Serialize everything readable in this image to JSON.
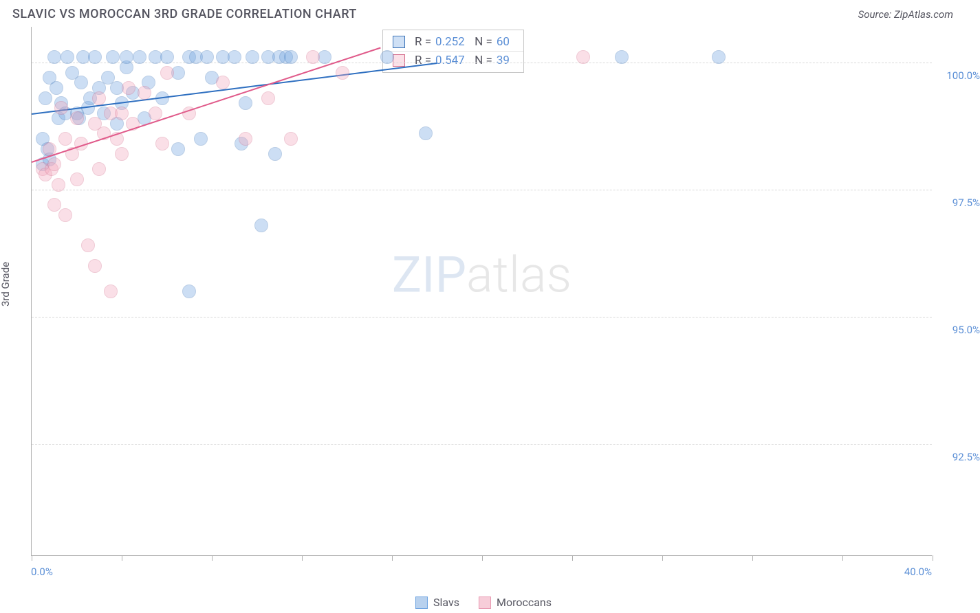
{
  "title": "SLAVIC VS MOROCCAN 3RD GRADE CORRELATION CHART",
  "source": "Source: ZipAtlas.com",
  "ylabel": "3rd Grade",
  "watermark_a": "ZIP",
  "watermark_b": "atlas",
  "chart": {
    "type": "scatter",
    "background_color": "#ffffff",
    "grid_color": "#d8d8d8",
    "axis_color": "#b0b0b0",
    "label_color": "#5b8fd6",
    "text_color": "#555560",
    "xlim": [
      0,
      40
    ],
    "ylim": [
      90.3,
      100.7
    ],
    "xtick_step": 4,
    "yticks": [
      92.5,
      95.0,
      97.5,
      100.0
    ],
    "ytick_labels": [
      "92.5%",
      "95.0%",
      "97.5%",
      "100.0%"
    ],
    "x_end_labels": [
      "0.0%",
      "40.0%"
    ],
    "marker_radius": 10,
    "marker_opacity": 0.35,
    "series": [
      {
        "name": "Slavs",
        "fill": "#6fa3e0",
        "stroke": "#3d74b8",
        "trend_color": "#2e6fc0",
        "trend": {
          "x1": 0,
          "y1": 99.0,
          "x2": 18,
          "y2": 100.0
        },
        "R": "0.252",
        "N": "60",
        "points": [
          [
            0.5,
            98.0
          ],
          [
            0.5,
            98.5
          ],
          [
            0.6,
            99.3
          ],
          [
            0.7,
            98.3
          ],
          [
            0.8,
            99.7
          ],
          [
            0.8,
            98.1
          ],
          [
            1.0,
            100.1
          ],
          [
            1.1,
            99.5
          ],
          [
            1.2,
            98.9
          ],
          [
            1.3,
            99.2
          ],
          [
            1.5,
            99.0
          ],
          [
            1.6,
            100.1
          ],
          [
            1.8,
            99.8
          ],
          [
            2.0,
            99.0
          ],
          [
            2.1,
            98.9
          ],
          [
            2.2,
            99.6
          ],
          [
            2.3,
            100.1
          ],
          [
            2.5,
            99.1
          ],
          [
            2.6,
            99.3
          ],
          [
            2.8,
            100.1
          ],
          [
            3.0,
            99.5
          ],
          [
            3.2,
            99.0
          ],
          [
            3.4,
            99.7
          ],
          [
            3.6,
            100.1
          ],
          [
            3.8,
            98.8
          ],
          [
            4.0,
            99.2
          ],
          [
            4.2,
            99.9
          ],
          [
            4.2,
            100.1
          ],
          [
            4.5,
            99.4
          ],
          [
            4.8,
            100.1
          ],
          [
            5.0,
            98.9
          ],
          [
            5.2,
            99.6
          ],
          [
            5.5,
            100.1
          ],
          [
            5.8,
            99.3
          ],
          [
            6.0,
            100.1
          ],
          [
            6.5,
            99.8
          ],
          [
            6.5,
            98.3
          ],
          [
            7.0,
            100.1
          ],
          [
            7.0,
            95.5
          ],
          [
            7.3,
            100.1
          ],
          [
            7.5,
            98.5
          ],
          [
            7.8,
            100.1
          ],
          [
            8.0,
            99.7
          ],
          [
            8.5,
            100.1
          ],
          [
            9.0,
            100.1
          ],
          [
            9.3,
            98.4
          ],
          [
            9.5,
            99.2
          ],
          [
            9.8,
            100.1
          ],
          [
            10.2,
            96.8
          ],
          [
            10.5,
            100.1
          ],
          [
            10.8,
            98.2
          ],
          [
            11.0,
            100.1
          ],
          [
            11.3,
            100.1
          ],
          [
            11.5,
            100.1
          ],
          [
            13.0,
            100.1
          ],
          [
            15.8,
            100.1
          ],
          [
            17.5,
            98.6
          ],
          [
            26.2,
            100.1
          ],
          [
            30.5,
            100.1
          ],
          [
            3.8,
            99.5
          ]
        ]
      },
      {
        "name": "Moroccans",
        "fill": "#f2a6bb",
        "stroke": "#d46a8a",
        "trend_color": "#e05a8a",
        "trend": {
          "x1": 0,
          "y1": 98.05,
          "x2": 15.5,
          "y2": 100.3
        },
        "R": "0.547",
        "N": "39",
        "points": [
          [
            0.5,
            97.9
          ],
          [
            0.6,
            97.8
          ],
          [
            0.8,
            98.3
          ],
          [
            0.9,
            97.9
          ],
          [
            1.0,
            98.0
          ],
          [
            1.0,
            97.2
          ],
          [
            1.2,
            97.6
          ],
          [
            1.3,
            99.1
          ],
          [
            1.5,
            97.0
          ],
          [
            1.5,
            98.5
          ],
          [
            1.8,
            98.2
          ],
          [
            2.0,
            98.9
          ],
          [
            2.0,
            97.7
          ],
          [
            2.2,
            98.4
          ],
          [
            2.5,
            96.4
          ],
          [
            2.8,
            98.8
          ],
          [
            2.8,
            96.0
          ],
          [
            3.0,
            99.3
          ],
          [
            3.0,
            97.9
          ],
          [
            3.2,
            98.6
          ],
          [
            3.5,
            99.0
          ],
          [
            3.5,
            95.5
          ],
          [
            3.8,
            98.5
          ],
          [
            4.0,
            99.0
          ],
          [
            4.0,
            98.2
          ],
          [
            4.3,
            99.5
          ],
          [
            4.5,
            98.8
          ],
          [
            5.0,
            99.4
          ],
          [
            5.5,
            99.0
          ],
          [
            5.8,
            98.4
          ],
          [
            6.0,
            99.8
          ],
          [
            7.0,
            99.0
          ],
          [
            8.5,
            99.6
          ],
          [
            9.5,
            98.5
          ],
          [
            10.5,
            99.3
          ],
          [
            11.5,
            98.5
          ],
          [
            12.5,
            100.1
          ],
          [
            13.8,
            99.8
          ],
          [
            24.5,
            100.1
          ]
        ]
      }
    ],
    "legend": [
      {
        "label": "Slavs",
        "fill": "#b8d1ee",
        "stroke": "#6fa3e0"
      },
      {
        "label": "Moroccans",
        "fill": "#f7cdd9",
        "stroke": "#e89ab2"
      }
    ]
  }
}
